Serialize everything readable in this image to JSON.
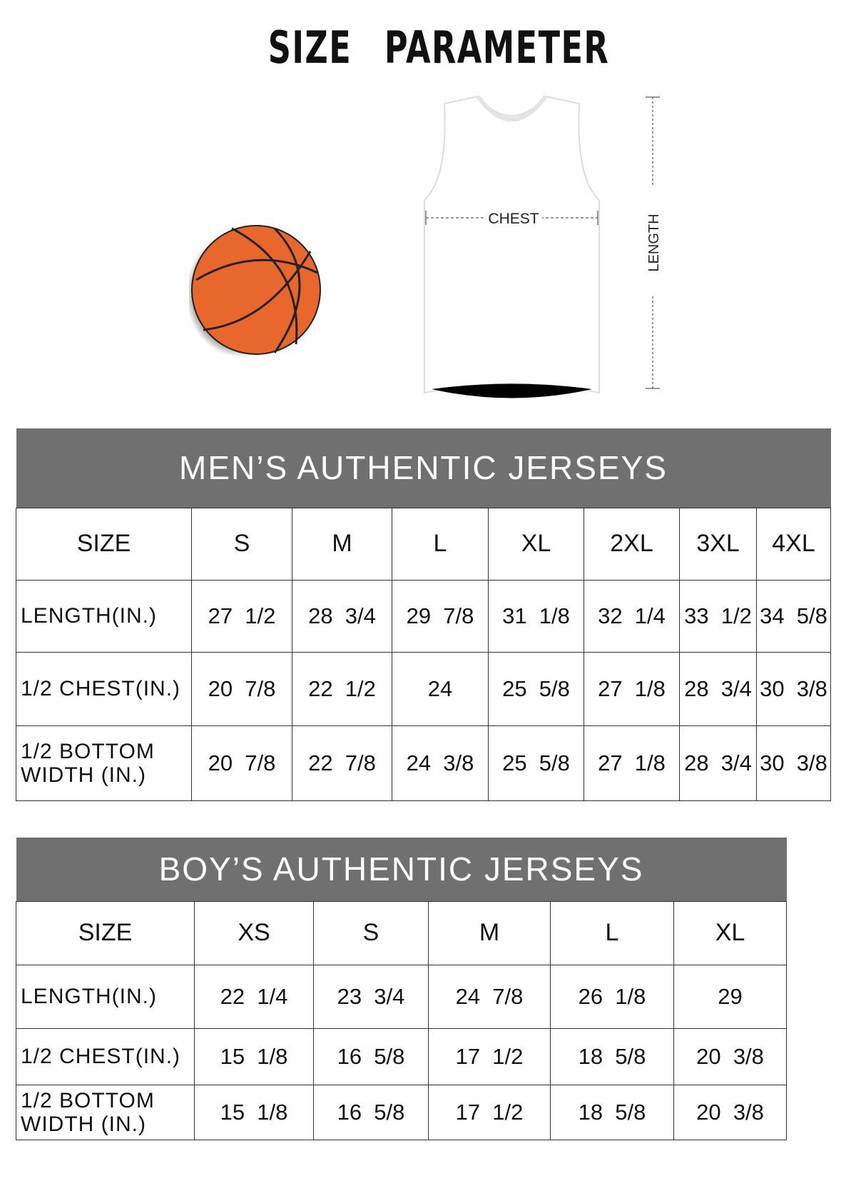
{
  "title": "SIZE PARAMETER",
  "diagram": {
    "chest_label": "CHEST",
    "length_label": "LENGTH",
    "ball_color": "#e8672c"
  },
  "colors": {
    "header_bg": "#707070",
    "header_text": "#ffffff"
  },
  "men_table": {
    "title": "MEN’S AUTHENTIC JERSEYS",
    "size_label": "SIZE",
    "sizes": [
      "S",
      "M",
      "L",
      "XL",
      "2XL",
      "3XL",
      "4XL"
    ],
    "rows": [
      {
        "label": "LENGTH(IN.)",
        "values": [
          "27  1/2",
          "28  3/4",
          "29  7/8",
          "31  1/8",
          "32  1/4",
          "33  1/2",
          "34  5/8"
        ]
      },
      {
        "label": "1/2 CHEST(IN.)",
        "values": [
          "20  7/8",
          "22  1/2",
          "24",
          "25  5/8",
          "27  1/8",
          "28  3/4",
          "30  3/8"
        ]
      },
      {
        "label": "1/2 BOTTOM\nWIDTH  (IN.)",
        "values": [
          "20  7/8",
          "22  7/8",
          "24  3/8",
          "25  5/8",
          "27  1/8",
          "28  3/4",
          "30  3/8"
        ]
      }
    ]
  },
  "boy_table": {
    "title": "BOY’S AUTHENTIC JERSEYS",
    "size_label": "SIZE",
    "sizes": [
      "XS",
      "S",
      "M",
      "L",
      "XL"
    ],
    "rows": [
      {
        "label": "LENGTH(IN.)",
        "values": [
          "22  1/4",
          "23  3/4",
          "24  7/8",
          "26  1/8",
          "29"
        ]
      },
      {
        "label": "1/2 CHEST(IN.)",
        "values": [
          "15  1/8",
          "16  5/8",
          "17  1/2",
          "18  5/8",
          "20  3/8"
        ]
      },
      {
        "label": "1/2 BOTTOM\nWIDTH  (IN.)",
        "values": [
          "15  1/8",
          "16  5/8",
          "17  1/2",
          "18  5/8",
          "20  3/8"
        ]
      }
    ]
  }
}
